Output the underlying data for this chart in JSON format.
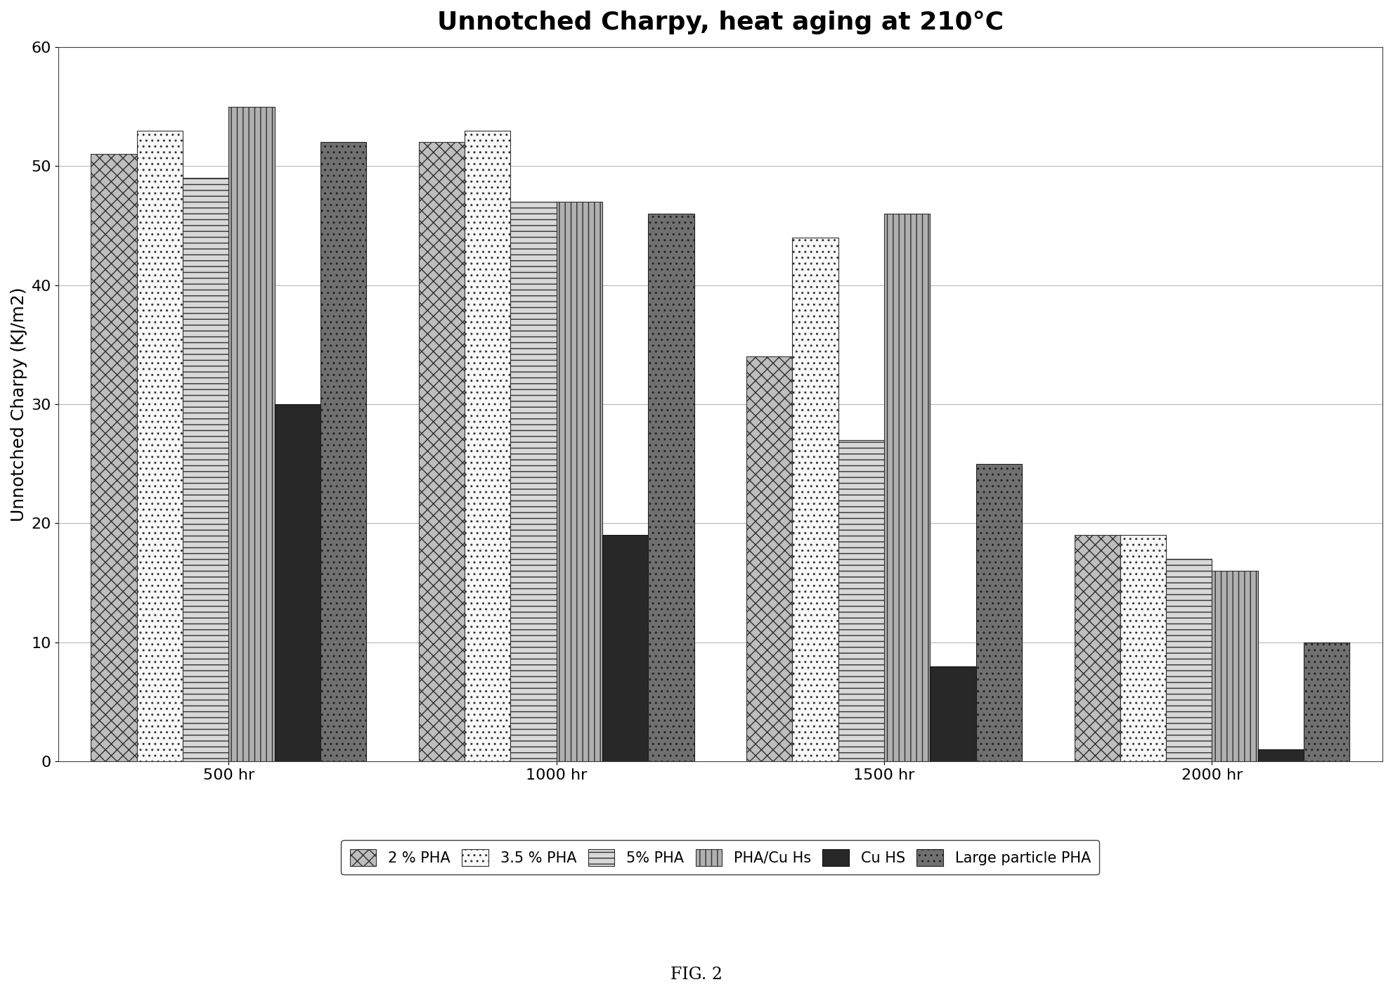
{
  "title": "Unnotched Charpy, heat aging at 210°C",
  "ylabel": "Unnotched Charpy (KJ/m2)",
  "fig_caption": "FIG. 2",
  "categories": [
    "500 hr",
    "1000 hr",
    "1500 hr",
    "2000 hr"
  ],
  "series_labels": [
    "2 % PHA",
    "3.5 % PHA",
    "5% PHA",
    "PHA/Cu Hs",
    "Cu HS",
    "Large particle PHA"
  ],
  "values": {
    "2 % PHA": [
      51,
      52,
      34,
      19
    ],
    "3.5 % PHA": [
      53,
      53,
      44,
      19
    ],
    "5% PHA": [
      49,
      47,
      27,
      17
    ],
    "PHA/Cu Hs": [
      55,
      47,
      46,
      16
    ],
    "Cu HS": [
      30,
      19,
      8,
      1
    ],
    "Large particle PHA": [
      52,
      46,
      25,
      10
    ]
  },
  "ylim": [
    0,
    60
  ],
  "yticks": [
    0,
    10,
    20,
    30,
    40,
    50,
    60
  ],
  "background_color": "#ffffff",
  "bar_width": 0.14,
  "title_fontsize": 26,
  "axis_label_fontsize": 18,
  "tick_fontsize": 16,
  "legend_fontsize": 15,
  "hatch_styles": [
    "xx",
    "..",
    "===",
    "|||",
    "",
    ".."
  ],
  "face_colors": [
    "#c0c0c0",
    "#f5f5f5",
    "#d0d0d0",
    "#a8a8a8",
    "#303030",
    "#686868"
  ],
  "edge_colors": [
    "#404040",
    "#404040",
    "#404040",
    "#404040",
    "#101010",
    "#202020"
  ]
}
